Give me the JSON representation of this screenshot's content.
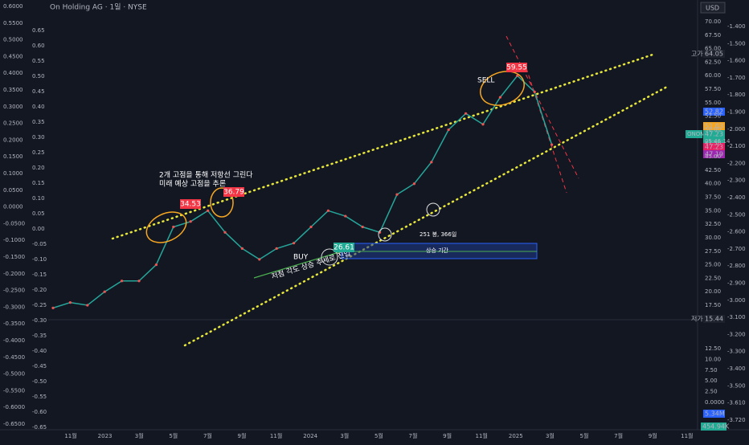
{
  "header": {
    "title": "On Holding AG · 1일 · NYSE",
    "currency": "USD"
  },
  "left_axis_outer": [
    "0.6000",
    "0.5500",
    "0.5000",
    "0.4500",
    "0.4000",
    "0.3500",
    "0.3000",
    "0.2500",
    "0.2000",
    "0.1500",
    "0.1000",
    "0.0500",
    "0.0000",
    "-0.0500",
    "-0.1000",
    "-0.1500",
    "-0.2000",
    "-0.2500",
    "-0.3000",
    "-0.3500",
    "-0.4000",
    "-0.4500",
    "-0.5000",
    "-0.5500",
    "-0.6000",
    "-0.6500"
  ],
  "left_axis_inner": [
    "0.65",
    "0.60",
    "0.55",
    "0.50",
    "0.45",
    "0.40",
    "0.35",
    "0.30",
    "0.25",
    "0.20",
    "0.15",
    "0.10",
    "0.05",
    "0.00",
    "-0.05",
    "-0.10",
    "-0.15",
    "-0.20",
    "-0.25",
    "-0.30",
    "-0.35",
    "-0.40",
    "-0.45",
    "-0.50",
    "-0.55",
    "-0.60",
    "-0.65"
  ],
  "price_axis": [
    "70.00",
    "67.50",
    "65.00",
    "62.50",
    "60.00",
    "57.50",
    "55.00",
    "52.50",
    "50.00",
    "47.50",
    "45.00",
    "42.50",
    "40.00",
    "37.50",
    "35.00",
    "32.50",
    "30.00",
    "27.50",
    "25.00",
    "22.50",
    "20.00",
    "17.50"
  ],
  "volume_axis": [
    "12.50",
    "10.00",
    "7.50",
    "5.00",
    "2.50",
    "0.0000"
  ],
  "far_right_axis": [
    "-1.400",
    "-1.500",
    "-1.600",
    "-1.700",
    "-1.800",
    "-1.900",
    "-2.000",
    "-2.100",
    "-2.200",
    "-2.300",
    "-2.400",
    "-2.500",
    "-2.600",
    "-2.700",
    "-2.800",
    "-2.900",
    "-3.000",
    "-3.100",
    "-3.200",
    "-3.300",
    "-3.400",
    "-3.500",
    "-3.610",
    "-3.720"
  ],
  "time_axis": [
    "11월",
    "2023",
    "3월",
    "5월",
    "7월",
    "9월",
    "11월",
    "2024",
    "3월",
    "5월",
    "7월",
    "9월",
    "11월",
    "2025",
    "3월",
    "5월",
    "7월",
    "9월",
    "11월"
  ],
  "price_series": [
    17,
    18,
    17.5,
    20,
    22,
    22,
    25,
    32,
    33,
    35,
    31,
    28,
    26,
    28,
    29,
    32,
    35,
    34,
    32,
    31,
    38,
    40,
    44,
    50,
    53,
    51,
    56,
    60,
    57,
    47.23
  ],
  "annotations": {
    "resistance_note_1": "2개 고점을 통해 저항선 그린다",
    "resistance_note_2": "미래 예상 고점을 추론",
    "sell": "SELL",
    "buy": "BUY",
    "trend_note": "저점 각도 상승 추세로 진입",
    "bars_note": "251 봉, 366일",
    "period": "상승 기간",
    "peak_1": "34.53",
    "peak_2": "36.79",
    "peak_3": "59.55",
    "low_1": "26.61"
  },
  "right_tags": {
    "high_label": "고가",
    "high": "64.05",
    "low_label": "저가",
    "low": "15.44",
    "ma1": "52.82",
    "ma2": "51.03",
    "symbol": "ONON",
    "last": "47.23",
    "countdown": "05:46:14",
    "t2": "47.23",
    "t3": "47.19",
    "vol1": "5.34M",
    "vol2": "454.94K"
  }
}
